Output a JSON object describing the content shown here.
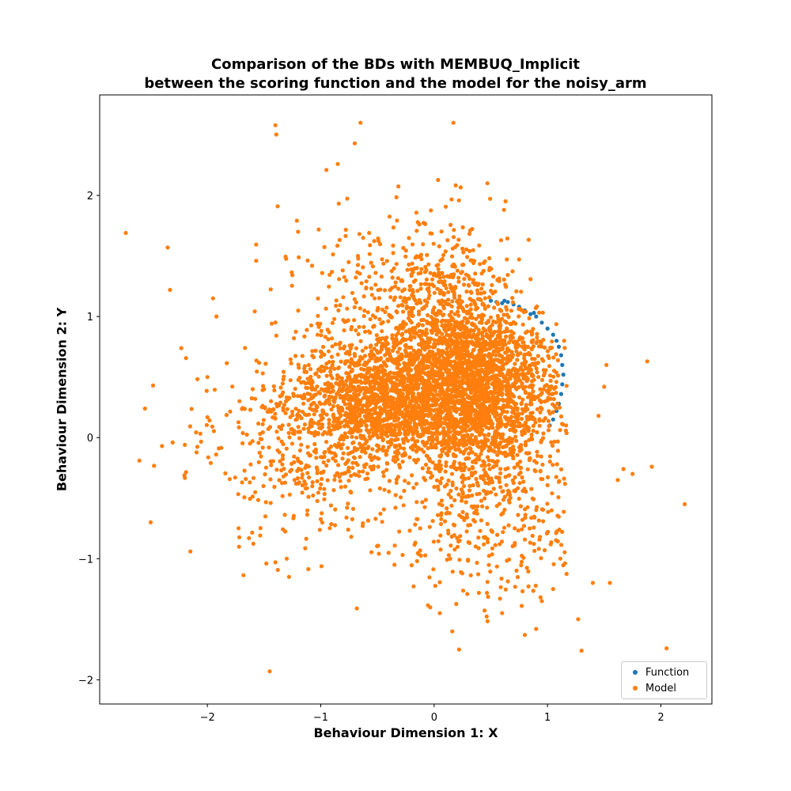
{
  "chart_data": {
    "type": "scatter",
    "title": "Comparison of the BDs with MEMBUQ_Implicit",
    "subtitle": "between the scoring function and the model for the noisy_arm",
    "xlabel": "Behaviour Dimension 1: X",
    "ylabel": "Behaviour Dimension 2: Y",
    "xlim": [
      -2.95,
      2.45
    ],
    "ylim": [
      -2.2,
      2.83
    ],
    "xticks": [
      -2,
      -1,
      0,
      1,
      2
    ],
    "xtick_labels": [
      "−2",
      "−1",
      "0",
      "1",
      "2"
    ],
    "yticks": [
      -2,
      -1,
      0,
      1,
      2
    ],
    "ytick_labels": [
      "−2",
      "−1",
      "0",
      "1",
      "2"
    ],
    "grid": false,
    "legend_position": "lower-right",
    "series": [
      {
        "name": "Function",
        "color": "#1f77b4",
        "points": [
          [
            0.5,
            1.13
          ],
          [
            0.55,
            1.12
          ],
          [
            0.6,
            1.11
          ],
          [
            0.65,
            1.12
          ],
          [
            0.7,
            1.1
          ],
          [
            0.75,
            1.08
          ],
          [
            0.8,
            1.05
          ],
          [
            0.85,
            1.02
          ],
          [
            0.9,
            1.0
          ],
          [
            0.95,
            0.95
          ],
          [
            1.0,
            0.9
          ],
          [
            1.05,
            0.85
          ],
          [
            1.08,
            0.8
          ],
          [
            1.1,
            0.75
          ],
          [
            1.12,
            0.68
          ],
          [
            1.13,
            0.6
          ],
          [
            1.14,
            0.52
          ],
          [
            1.13,
            0.44
          ],
          [
            1.12,
            0.36
          ],
          [
            1.1,
            0.28
          ],
          [
            1.08,
            0.22
          ],
          [
            1.05,
            0.15
          ],
          [
            1.02,
            0.1
          ],
          [
            0.62,
            1.13
          ],
          [
            0.88,
            1.03
          ]
        ]
      },
      {
        "name": "Model",
        "color": "#ff7f0e",
        "outliers": [
          [
            -2.72,
            1.69
          ],
          [
            -2.35,
            1.57
          ],
          [
            -2.33,
            1.22
          ],
          [
            -0.65,
            2.6
          ],
          [
            -1.4,
            2.58
          ],
          [
            0.17,
            2.6
          ],
          [
            -0.7,
            2.43
          ],
          [
            -0.85,
            2.26
          ],
          [
            -0.95,
            2.21
          ],
          [
            0.47,
            2.1
          ],
          [
            -2.55,
            0.24
          ],
          [
            -2.6,
            -0.19
          ],
          [
            -2.4,
            -0.07
          ],
          [
            -2.5,
            -0.7
          ],
          [
            -2.15,
            -0.94
          ],
          [
            -1.45,
            -1.93
          ],
          [
            2.05,
            -1.74
          ],
          [
            1.3,
            -1.76
          ],
          [
            0.22,
            -1.75
          ],
          [
            0.8,
            -1.63
          ],
          [
            1.88,
            0.63
          ],
          [
            2.21,
            -0.55
          ],
          [
            1.75,
            -0.3
          ],
          [
            1.55,
            -1.2
          ],
          [
            1.27,
            -1.5
          ],
          [
            -1.57,
            1.46
          ],
          [
            -1.38,
            1.91
          ],
          [
            -1.2,
            1.7
          ],
          [
            -1.6,
            0.4
          ],
          [
            -1.95,
            1.15
          ],
          [
            -1.92,
            1.0
          ],
          [
            -2.0,
            0.5
          ],
          [
            -1.3,
            -1.0
          ],
          [
            -1.28,
            -1.15
          ],
          [
            -1.4,
            -1.03
          ],
          [
            0.05,
            -1.45
          ],
          [
            0.16,
            -1.6
          ],
          [
            0.6,
            -1.45
          ],
          [
            0.9,
            -1.58
          ],
          [
            1.52,
            0.6
          ],
          [
            1.5,
            0.42
          ],
          [
            1.45,
            0.18
          ],
          [
            1.92,
            -0.24
          ],
          [
            1.67,
            -0.26
          ],
          [
            1.62,
            -0.35
          ],
          [
            1.4,
            -1.2
          ],
          [
            0.95,
            -1.35
          ],
          [
            1.05,
            -1.25
          ],
          [
            -0.35,
            -1.05
          ],
          [
            -0.15,
            -1.02
          ]
        ]
      }
    ]
  }
}
